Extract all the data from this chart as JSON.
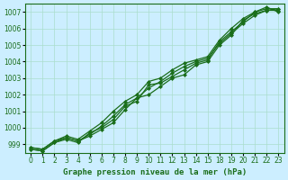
{
  "title": "Graphe pression niveau de la mer (hPa)",
  "background_color": "#cceeff",
  "grid_color": "#aaddcc",
  "line_color": "#1a6e1a",
  "ylim": [
    998.5,
    1007.5
  ],
  "yticks": [
    999,
    1000,
    1001,
    1002,
    1003,
    1004,
    1005,
    1006,
    1007
  ],
  "x_hours": [
    0,
    1,
    2,
    3,
    4,
    5,
    6,
    7,
    8,
    9,
    10,
    11,
    12,
    13,
    14,
    15,
    18,
    19,
    20,
    21,
    22,
    23
  ],
  "lines": [
    [
      998.7,
      998.6,
      999.1,
      999.4,
      999.2,
      999.5,
      999.9,
      1000.3,
      1001.1,
      1001.8,
      1002.0,
      1002.5,
      1003.0,
      1003.2,
      1003.8,
      1004.0,
      1005.0,
      1005.6,
      1006.5,
      1006.9,
      1007.1,
      1007.2
    ],
    [
      998.7,
      998.6,
      999.1,
      999.3,
      999.1,
      999.7,
      1000.0,
      1000.5,
      1001.3,
      1001.6,
      1002.6,
      1002.7,
      1003.1,
      1003.5,
      1003.9,
      1004.1,
      1005.2,
      1005.8,
      1006.4,
      1007.0,
      1007.3,
      1007.0
    ],
    [
      998.8,
      998.7,
      999.2,
      999.5,
      999.3,
      999.8,
      1000.3,
      1001.0,
      1001.6,
      1002.0,
      1002.8,
      1003.0,
      1003.5,
      1003.9,
      1004.1,
      1004.3,
      1005.3,
      1006.0,
      1006.6,
      1007.0,
      1007.2,
      1007.2
    ],
    [
      998.8,
      998.7,
      999.2,
      999.4,
      999.2,
      999.6,
      1000.1,
      1000.7,
      1001.4,
      1001.8,
      1002.4,
      1002.8,
      1003.3,
      1003.7,
      1004.0,
      1004.2,
      1005.1,
      1005.7,
      1006.3,
      1006.8,
      1007.1,
      1007.1
    ]
  ],
  "marker": "D",
  "markersize": 2.0,
  "linewidth": 0.9,
  "tick_fontsize": 5.5,
  "xlabel_fontsize": 6.5
}
